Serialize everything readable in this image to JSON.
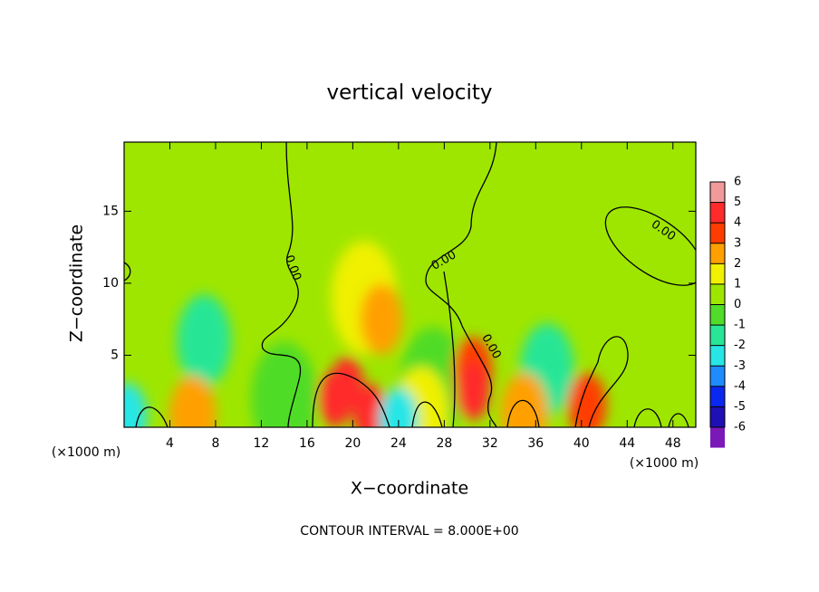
{
  "chart_data": {
    "type": "contour",
    "title": "vertical velocity",
    "x_label": "X−coordinate",
    "y_label": "Z−coordinate",
    "x_unit_left": "(×1000 m)",
    "x_unit_right": "(×1000 m)",
    "footer": "CONTOUR INTERVAL = 8.000E+00",
    "xlim": [
      0,
      50
    ],
    "ylim": [
      0,
      19.8
    ],
    "xticks": [
      4,
      8,
      12,
      16,
      20,
      24,
      28,
      32,
      36,
      40,
      44,
      48
    ],
    "yticks": [
      5,
      10,
      15
    ],
    "contour_labels": [
      "0.00",
      "0.00",
      "0.00",
      "0.00"
    ],
    "colorbar": {
      "ticks": [
        6,
        5,
        4,
        3,
        2,
        1,
        0,
        -1,
        -2,
        -3,
        -4,
        -5,
        -6
      ],
      "colors": [
        "#f29a9a",
        "#ff2a2a",
        "#ff3c00",
        "#ffa000",
        "#f0f000",
        "#9ee600",
        "#50dc28",
        "#28e696",
        "#28e6e6",
        "#1e8cff",
        "#0a28f0",
        "#1e10b4",
        "#7a18b8"
      ]
    },
    "peaks": [
      {
        "x": 21,
        "z": 9,
        "value": 1
      },
      {
        "x": 22.5,
        "z": 7.5,
        "value": 2.5
      },
      {
        "x": 7,
        "z": 6,
        "value": -1.5
      },
      {
        "x": 37,
        "z": 4,
        "value": -1.5
      },
      {
        "x": 14,
        "z": 2,
        "value": -1
      },
      {
        "x": 27,
        "z": 3,
        "value": -1
      },
      {
        "x": 6,
        "z": 0.8,
        "value": 2
      },
      {
        "x": 26,
        "z": 1,
        "value": 1.5
      },
      {
        "x": 35,
        "z": 1,
        "value": 2
      },
      {
        "x": 30.5,
        "z": 4,
        "value": 3
      },
      {
        "x": 40.5,
        "z": 1.5,
        "value": 3
      },
      {
        "x": 18.5,
        "z": 2,
        "value": 4
      },
      {
        "x": 21.5,
        "z": 1,
        "value": 4
      },
      {
        "x": 30.5,
        "z": 2.5,
        "value": 4
      },
      {
        "x": 19.5,
        "z": 3,
        "value": 4.5
      },
      {
        "x": 0.3,
        "z": 0.8,
        "value": -3
      },
      {
        "x": 24,
        "z": 0.5,
        "value": -3
      }
    ]
  }
}
